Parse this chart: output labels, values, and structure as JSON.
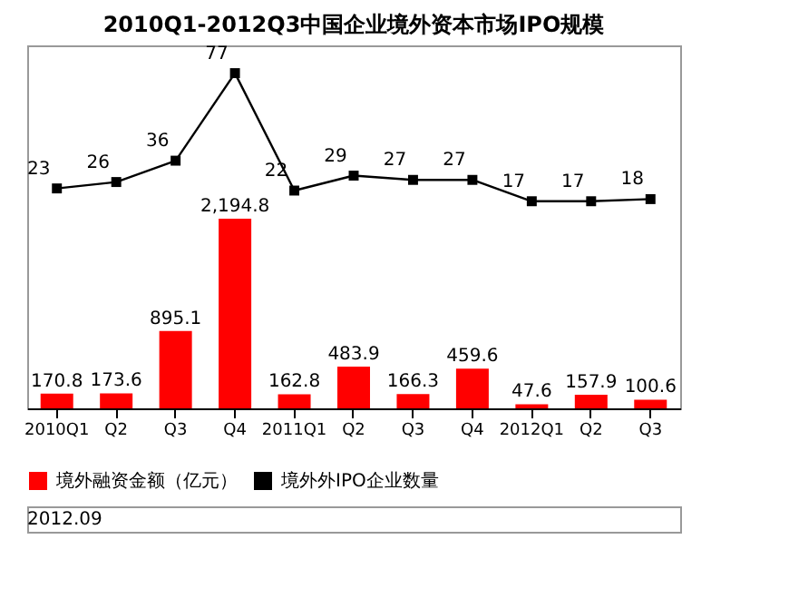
{
  "chart_data": {
    "type": "bar",
    "title": "2010Q1-2012Q3中国企业境外资本市场IPO规模",
    "categories": [
      "2010Q1",
      "Q2",
      "Q3",
      "Q4",
      "2011Q1",
      "Q2",
      "Q3",
      "Q4",
      "2012Q1",
      "Q2",
      "Q3"
    ],
    "series": [
      {
        "name": "境外融资金额（亿元）",
        "color": "#ff0000",
        "values": [
          170.8,
          173.6,
          895.1,
          2194.8,
          162.8,
          483.9,
          166.3,
          459.6,
          47.6,
          157.9,
          100.6
        ],
        "value_labels": [
          "170.8",
          "173.6",
          "895.1",
          "2,194.8",
          "162.8",
          "483.9",
          "166.3",
          "459.6",
          "47.6",
          "157.9",
          "100.6"
        ]
      },
      {
        "name": "境外外IPO企业数量",
        "color": "#000000",
        "type": "line",
        "axis": "y2",
        "marker": "square",
        "line_style": "solid",
        "values": [
          23,
          26,
          36,
          77,
          22,
          29,
          27,
          27,
          17,
          17,
          18
        ],
        "value_labels": [
          "23",
          "26",
          "36",
          "77",
          "22",
          "29",
          "27",
          "27",
          "17",
          "17",
          "18"
        ]
      }
    ],
    "ylim": [
      0,
      4200
    ],
    "y2lim": [
      -80,
      90
    ],
    "grid": false,
    "legend": "bottom",
    "tick_labels": "x",
    "annotations": [
      "2012.09"
    ]
  }
}
